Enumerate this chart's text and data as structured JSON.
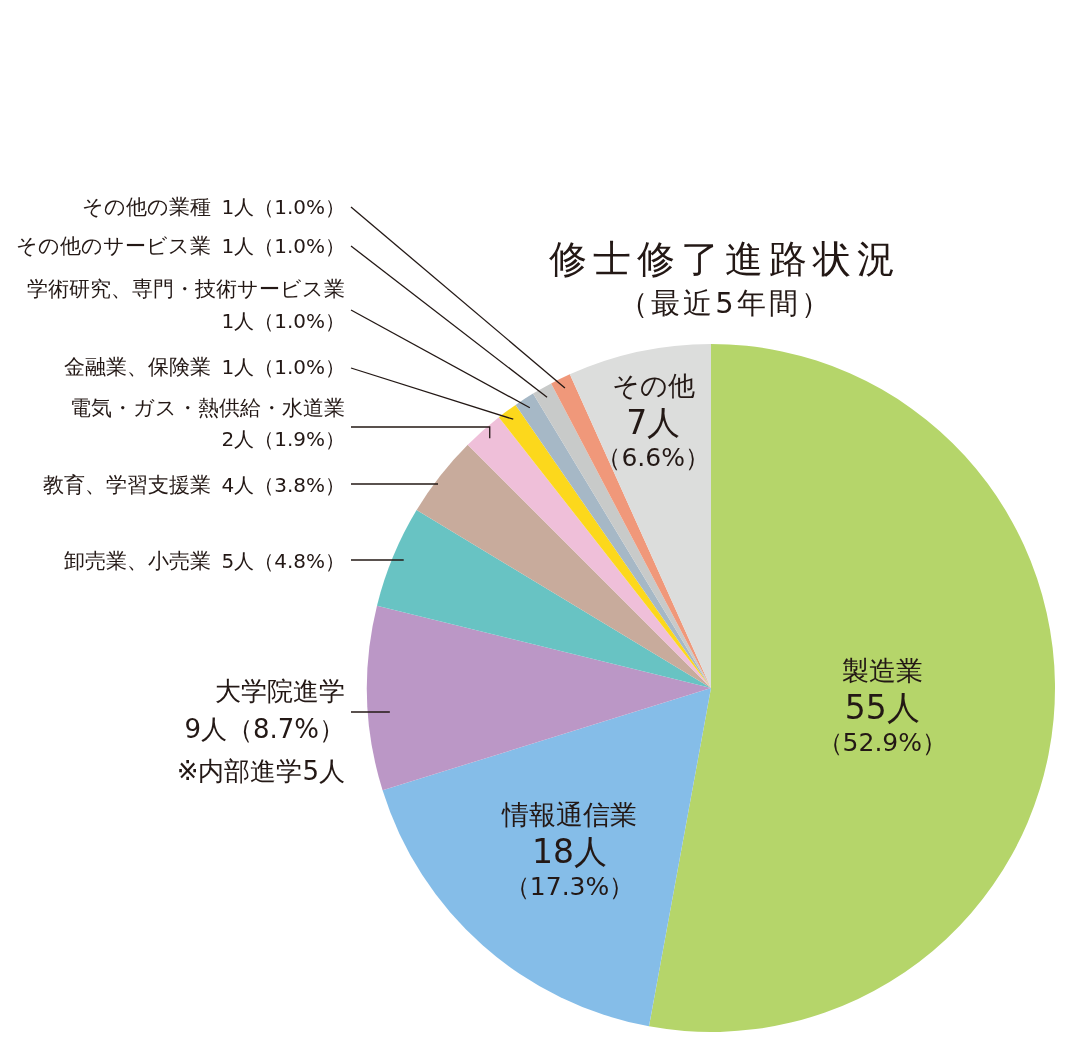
{
  "chart_data": {
    "type": "pie",
    "title": "修士修了進路状況",
    "subtitle": "（最近5年間）",
    "categories": [
      "製造業",
      "情報通信業",
      "大学院進学",
      "卸売業、小売業",
      "教育、学習支援業",
      "電気・ガス・熱供給・水道業",
      "金融業、保険業",
      "学術研究、専門・技術サービス業",
      "その他のサービス業",
      "その他の業種",
      "その他"
    ],
    "values": [
      55,
      18,
      9,
      5,
      4,
      2,
      1,
      1,
      1,
      1,
      7
    ],
    "colors": [
      "#b5d56a",
      "#85bde8",
      "#bb97c6",
      "#68c3c3",
      "#c8ab9c",
      "#efbfd9",
      "#fcd81c",
      "#a6b8c6",
      "#c8cac9",
      "#f0987a",
      "#dcdddc"
    ],
    "value_labels": [
      "55人（52.9%）",
      "18人（17.3%）",
      "9人（8.7%）",
      "5人（4.8%）",
      "4人（3.8%）",
      "2人（1.9%）",
      "1人（1.0%）",
      "1人（1.0%）",
      "1人（1.0%）",
      "1人（1.0%）",
      "7人（6.6%）"
    ],
    "annotations": [
      {
        "text": "※内部進学5人",
        "x": "大学院進学"
      }
    ]
  }
}
